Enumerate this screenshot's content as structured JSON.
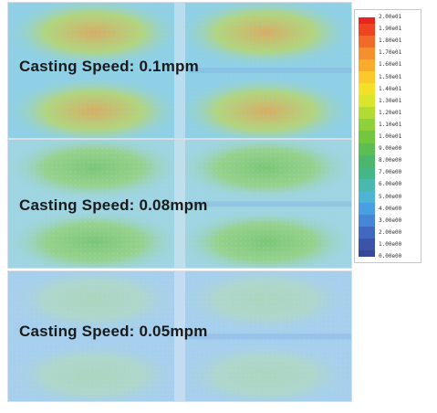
{
  "panels": [
    {
      "label": "Casting Speed: 0.1mpm",
      "intensity": "high"
    },
    {
      "label": "Casting Speed: 0.08mpm",
      "intensity": "medium"
    },
    {
      "label": "Casting Speed: 0.05mpm",
      "intensity": "low"
    }
  ],
  "legend": {
    "ticks": [
      "2.00e01",
      "1.90e01",
      "1.80e01",
      "1.70e01",
      "1.60e01",
      "1.50e01",
      "1.40e01",
      "1.30e01",
      "1.20e01",
      "1.10e01",
      "1.00e01",
      "9.00e00",
      "8.00e00",
      "7.00e00",
      "6.00e00",
      "5.00e00",
      "4.00e00",
      "3.00e00",
      "2.00e00",
      "1.00e00",
      "0.00e00"
    ],
    "colors": [
      "#e8241c",
      "#ee4422",
      "#f06a2a",
      "#f58f2f",
      "#f9ab2c",
      "#fbc92a",
      "#f4e026",
      "#d8e62d",
      "#b2dc34",
      "#8fd13a",
      "#72c640",
      "#5cbd52",
      "#4cb66a",
      "#44b688",
      "#4ab8ad",
      "#4fb3d3",
      "#4a9fe0",
      "#4785d6",
      "#4169bf",
      "#3c54a8",
      "#35489a"
    ]
  }
}
